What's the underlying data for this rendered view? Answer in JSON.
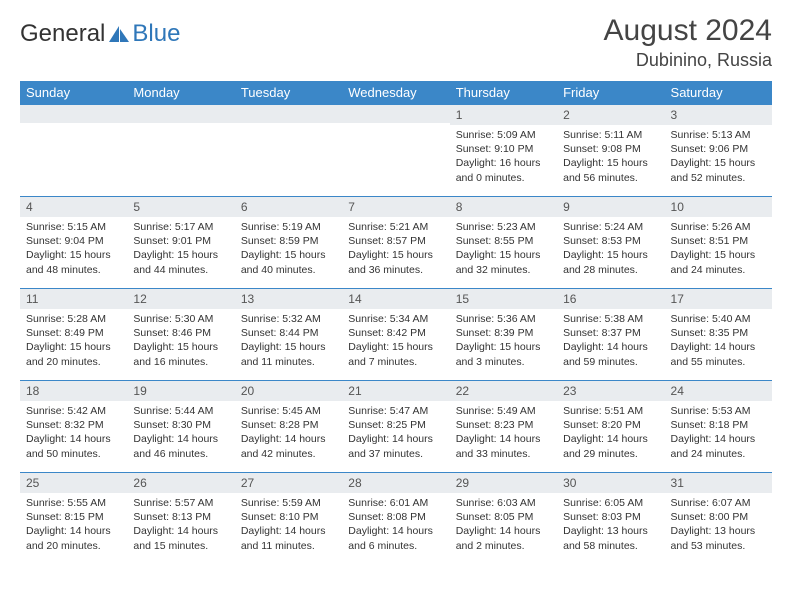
{
  "brand": {
    "part1": "General",
    "part2": "Blue",
    "logo_color": "#2f77b9"
  },
  "title": "August 2024",
  "location": "Dubinino, Russia",
  "colors": {
    "header_bg": "#3b87c8",
    "header_text": "#ffffff",
    "daynum_bg": "#e9ecef",
    "row_border": "#3b87c8"
  },
  "weekdays": [
    "Sunday",
    "Monday",
    "Tuesday",
    "Wednesday",
    "Thursday",
    "Friday",
    "Saturday"
  ],
  "weeks": [
    [
      {
        "n": "",
        "sr": "",
        "ss": "",
        "dl": ""
      },
      {
        "n": "",
        "sr": "",
        "ss": "",
        "dl": ""
      },
      {
        "n": "",
        "sr": "",
        "ss": "",
        "dl": ""
      },
      {
        "n": "",
        "sr": "",
        "ss": "",
        "dl": ""
      },
      {
        "n": "1",
        "sr": "Sunrise: 5:09 AM",
        "ss": "Sunset: 9:10 PM",
        "dl": "Daylight: 16 hours and 0 minutes."
      },
      {
        "n": "2",
        "sr": "Sunrise: 5:11 AM",
        "ss": "Sunset: 9:08 PM",
        "dl": "Daylight: 15 hours and 56 minutes."
      },
      {
        "n": "3",
        "sr": "Sunrise: 5:13 AM",
        "ss": "Sunset: 9:06 PM",
        "dl": "Daylight: 15 hours and 52 minutes."
      }
    ],
    [
      {
        "n": "4",
        "sr": "Sunrise: 5:15 AM",
        "ss": "Sunset: 9:04 PM",
        "dl": "Daylight: 15 hours and 48 minutes."
      },
      {
        "n": "5",
        "sr": "Sunrise: 5:17 AM",
        "ss": "Sunset: 9:01 PM",
        "dl": "Daylight: 15 hours and 44 minutes."
      },
      {
        "n": "6",
        "sr": "Sunrise: 5:19 AM",
        "ss": "Sunset: 8:59 PM",
        "dl": "Daylight: 15 hours and 40 minutes."
      },
      {
        "n": "7",
        "sr": "Sunrise: 5:21 AM",
        "ss": "Sunset: 8:57 PM",
        "dl": "Daylight: 15 hours and 36 minutes."
      },
      {
        "n": "8",
        "sr": "Sunrise: 5:23 AM",
        "ss": "Sunset: 8:55 PM",
        "dl": "Daylight: 15 hours and 32 minutes."
      },
      {
        "n": "9",
        "sr": "Sunrise: 5:24 AM",
        "ss": "Sunset: 8:53 PM",
        "dl": "Daylight: 15 hours and 28 minutes."
      },
      {
        "n": "10",
        "sr": "Sunrise: 5:26 AM",
        "ss": "Sunset: 8:51 PM",
        "dl": "Daylight: 15 hours and 24 minutes."
      }
    ],
    [
      {
        "n": "11",
        "sr": "Sunrise: 5:28 AM",
        "ss": "Sunset: 8:49 PM",
        "dl": "Daylight: 15 hours and 20 minutes."
      },
      {
        "n": "12",
        "sr": "Sunrise: 5:30 AM",
        "ss": "Sunset: 8:46 PM",
        "dl": "Daylight: 15 hours and 16 minutes."
      },
      {
        "n": "13",
        "sr": "Sunrise: 5:32 AM",
        "ss": "Sunset: 8:44 PM",
        "dl": "Daylight: 15 hours and 11 minutes."
      },
      {
        "n": "14",
        "sr": "Sunrise: 5:34 AM",
        "ss": "Sunset: 8:42 PM",
        "dl": "Daylight: 15 hours and 7 minutes."
      },
      {
        "n": "15",
        "sr": "Sunrise: 5:36 AM",
        "ss": "Sunset: 8:39 PM",
        "dl": "Daylight: 15 hours and 3 minutes."
      },
      {
        "n": "16",
        "sr": "Sunrise: 5:38 AM",
        "ss": "Sunset: 8:37 PM",
        "dl": "Daylight: 14 hours and 59 minutes."
      },
      {
        "n": "17",
        "sr": "Sunrise: 5:40 AM",
        "ss": "Sunset: 8:35 PM",
        "dl": "Daylight: 14 hours and 55 minutes."
      }
    ],
    [
      {
        "n": "18",
        "sr": "Sunrise: 5:42 AM",
        "ss": "Sunset: 8:32 PM",
        "dl": "Daylight: 14 hours and 50 minutes."
      },
      {
        "n": "19",
        "sr": "Sunrise: 5:44 AM",
        "ss": "Sunset: 8:30 PM",
        "dl": "Daylight: 14 hours and 46 minutes."
      },
      {
        "n": "20",
        "sr": "Sunrise: 5:45 AM",
        "ss": "Sunset: 8:28 PM",
        "dl": "Daylight: 14 hours and 42 minutes."
      },
      {
        "n": "21",
        "sr": "Sunrise: 5:47 AM",
        "ss": "Sunset: 8:25 PM",
        "dl": "Daylight: 14 hours and 37 minutes."
      },
      {
        "n": "22",
        "sr": "Sunrise: 5:49 AM",
        "ss": "Sunset: 8:23 PM",
        "dl": "Daylight: 14 hours and 33 minutes."
      },
      {
        "n": "23",
        "sr": "Sunrise: 5:51 AM",
        "ss": "Sunset: 8:20 PM",
        "dl": "Daylight: 14 hours and 29 minutes."
      },
      {
        "n": "24",
        "sr": "Sunrise: 5:53 AM",
        "ss": "Sunset: 8:18 PM",
        "dl": "Daylight: 14 hours and 24 minutes."
      }
    ],
    [
      {
        "n": "25",
        "sr": "Sunrise: 5:55 AM",
        "ss": "Sunset: 8:15 PM",
        "dl": "Daylight: 14 hours and 20 minutes."
      },
      {
        "n": "26",
        "sr": "Sunrise: 5:57 AM",
        "ss": "Sunset: 8:13 PM",
        "dl": "Daylight: 14 hours and 15 minutes."
      },
      {
        "n": "27",
        "sr": "Sunrise: 5:59 AM",
        "ss": "Sunset: 8:10 PM",
        "dl": "Daylight: 14 hours and 11 minutes."
      },
      {
        "n": "28",
        "sr": "Sunrise: 6:01 AM",
        "ss": "Sunset: 8:08 PM",
        "dl": "Daylight: 14 hours and 6 minutes."
      },
      {
        "n": "29",
        "sr": "Sunrise: 6:03 AM",
        "ss": "Sunset: 8:05 PM",
        "dl": "Daylight: 14 hours and 2 minutes."
      },
      {
        "n": "30",
        "sr": "Sunrise: 6:05 AM",
        "ss": "Sunset: 8:03 PM",
        "dl": "Daylight: 13 hours and 58 minutes."
      },
      {
        "n": "31",
        "sr": "Sunrise: 6:07 AM",
        "ss": "Sunset: 8:00 PM",
        "dl": "Daylight: 13 hours and 53 minutes."
      }
    ]
  ]
}
